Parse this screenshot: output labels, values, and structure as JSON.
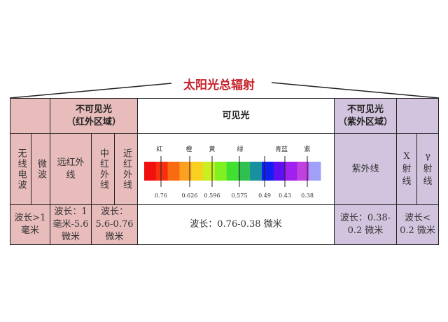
{
  "title": "太阳光总辐射",
  "header": {
    "ir": "不可见光\n（红外区域）",
    "visible": "可见光",
    "uv": "不可见光\n（紫外区域）"
  },
  "bands": {
    "radio": "无线电波",
    "microwave": "微波",
    "far_ir": "远红外线",
    "mid_ir": "中红外线",
    "near_ir": "近红外线",
    "uv": "紫外线",
    "xray": "X射线",
    "gamma": "γ射线"
  },
  "wavelengths": {
    "radio": "波长>1\n毫米",
    "far_ir": "波长：1\n毫米-5.6\n微米",
    "mid_near_ir": "波长：\n5.6-0.76\n微米",
    "visible": "波长：0.76-0.38 微米",
    "uv": "波长：0.38-\n0.2 微米",
    "xray_gamma": "波长<\n0.2 微米"
  },
  "spectrum": {
    "colors": [
      "红",
      "橙",
      "黄",
      "绿",
      "青蓝",
      "紫"
    ],
    "ticks": [
      "0.76",
      "0.626",
      "0.596",
      "0.575",
      "0.49",
      "0.43",
      "0.38"
    ],
    "gradient": [
      "#f01010",
      "#f83010",
      "#fa6a10",
      "#fba020",
      "#f8d020",
      "#c8f020",
      "#80f020",
      "#40e030",
      "#30c050",
      "#1890a0",
      "#1020f0",
      "#6010f0",
      "#a020f0",
      "#c040e0",
      "#a0a0f8"
    ]
  },
  "colors": {
    "ir": "#e9bcbc",
    "uv": "#d2c4de",
    "title": "#c8222a"
  }
}
